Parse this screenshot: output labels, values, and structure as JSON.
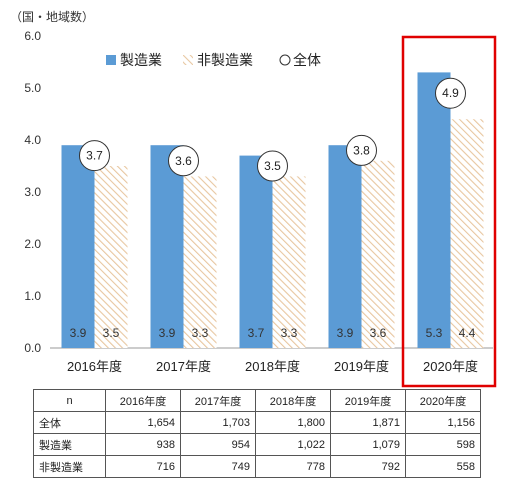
{
  "unit_label": "（国・地域数）",
  "legend": {
    "manufacturing": "製造業",
    "non_manufacturing": "非製造業",
    "total": "全体"
  },
  "colors": {
    "manufacturing": "#5b9bd5",
    "hatch": "#e8c7a0",
    "highlight": "#e00000"
  },
  "chart_data": {
    "type": "bar",
    "categories": [
      "2016年度",
      "2017年度",
      "2018年度",
      "2019年度",
      "2020年度"
    ],
    "series": [
      {
        "name": "製造業",
        "values": [
          3.9,
          3.9,
          3.7,
          3.9,
          5.3
        ]
      },
      {
        "name": "非製造業",
        "values": [
          3.5,
          3.3,
          3.3,
          3.6,
          4.4
        ]
      },
      {
        "name": "全体",
        "values": [
          3.7,
          3.6,
          3.5,
          3.8,
          4.9
        ]
      }
    ],
    "ylim": [
      0,
      6
    ],
    "yticks": [
      "0.0",
      "1.0",
      "2.0",
      "3.0",
      "4.0",
      "5.0",
      "6.0"
    ],
    "highlighted_category": "2020年度",
    "legend_position": "top"
  },
  "table": {
    "header": [
      "n",
      "2016年度",
      "2017年度",
      "2018年度",
      "2019年度",
      "2020年度"
    ],
    "rows": [
      {
        "label": "全体",
        "values": [
          "1,654",
          "1,703",
          "1,800",
          "1,871",
          "1,156"
        ]
      },
      {
        "label": "製造業",
        "values": [
          "938",
          "954",
          "1,022",
          "1,079",
          "598"
        ]
      },
      {
        "label": "非製造業",
        "values": [
          "716",
          "749",
          "778",
          "792",
          "558"
        ]
      }
    ]
  }
}
